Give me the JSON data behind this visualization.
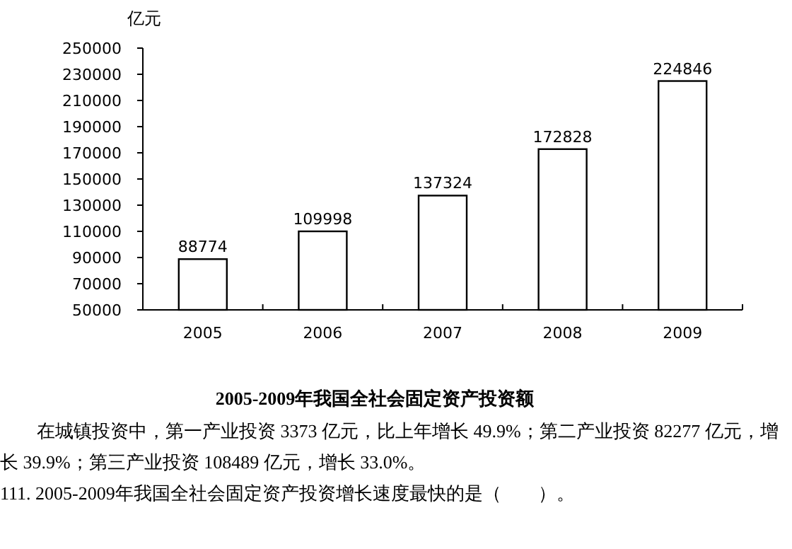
{
  "chart_data": {
    "type": "bar",
    "title": "2005-2009年我国全社会固定资产投资额",
    "ylabel": "亿元",
    "categories": [
      "2005",
      "2006",
      "2007",
      "2008",
      "2009"
    ],
    "values": [
      88774,
      109998,
      137324,
      172828,
      224846
    ],
    "color": "#ffffff",
    "ylim": [
      50000,
      250000
    ],
    "yticks": [
      50000,
      70000,
      90000,
      110000,
      130000,
      150000,
      170000,
      190000,
      210000,
      230000,
      250000
    ],
    "grid": false,
    "data_labels": true,
    "annotations": [
      "在城镇投资中，第一产业投资 3373 亿元，比上年增长 49.9%；第二产业投资 82277 亿元，增长 39.9%；第三产业投资 108489 亿元，增长 33.0%。",
      "111. 2005-2009年我国全社会固定资产投资增长速度最快的是（　　）。"
    ]
  }
}
